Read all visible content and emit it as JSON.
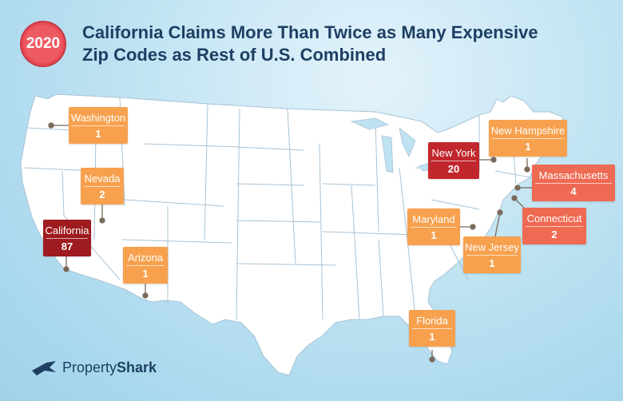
{
  "header": {
    "year": "2020",
    "title_line1": "California Claims More Than Twice as Many Expensive",
    "title_line2": "Zip Codes as Rest of U.S. Combined"
  },
  "colors": {
    "low": "#f7a14e",
    "mid": "#ef6a52",
    "high": "#c1272d",
    "darkest": "#9e1b1f",
    "land": "#ffffff",
    "border": "#9fb9cc"
  },
  "states": [
    {
      "name": "California",
      "value": 87
    },
    {
      "name": "New York",
      "value": 20
    },
    {
      "name": "Massachusetts",
      "value": 4
    },
    {
      "name": "Nevada",
      "value": 2
    },
    {
      "name": "Connecticut",
      "value": 2
    },
    {
      "name": "Washington",
      "value": 1
    },
    {
      "name": "Arizona",
      "value": 1
    },
    {
      "name": "New Hampshire",
      "value": 1
    },
    {
      "name": "Maryland",
      "value": 1
    },
    {
      "name": "New Jersey",
      "value": 1
    },
    {
      "name": "Florida",
      "value": 1
    }
  ],
  "logo": {
    "brand_a": "Property",
    "brand_b": "Shark"
  }
}
